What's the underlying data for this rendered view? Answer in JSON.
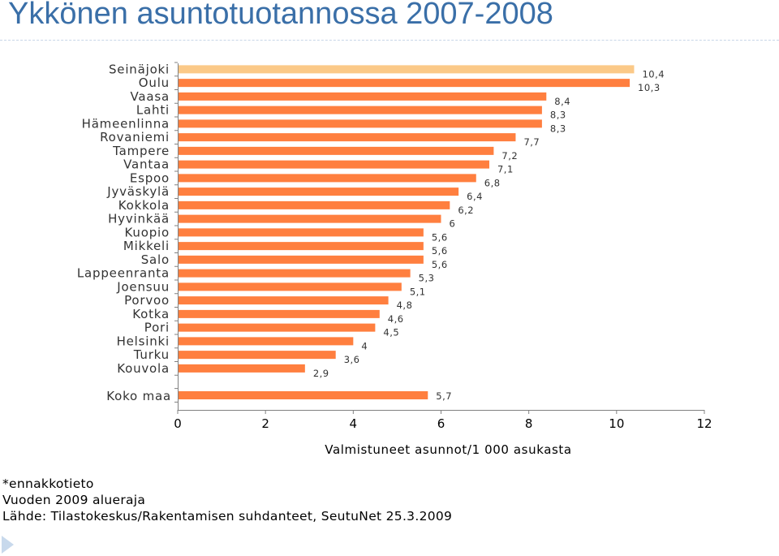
{
  "title": "Ykkönen asuntotuotannossa 2007-2008",
  "footnotes": [
    "*ennakkotieto",
    "Vuoden 2009 alueraja",
    "Lähde: Tilastokeskus/Rakentamisen suhdanteet, SeutuNet 25.3.2009"
  ],
  "icons": {
    "bullet": "triangle-arrow-icon"
  },
  "colors": {
    "bar": "#ff7f3f",
    "highlight_bar": "#fbc988",
    "title": "#3a6fa8",
    "dash": "#c8d6e8"
  },
  "chart_data": {
    "type": "bar",
    "orientation": "horizontal",
    "categories": [
      "Seinäjoki",
      "Oulu",
      "Vaasa",
      "Lahti",
      "Hämeenlinna",
      "Rovaniemi",
      "Tampere",
      "Vantaa",
      "Espoo",
      "Jyväskylä",
      "Kokkola",
      "Hyvinkää",
      "Kuopio",
      "Mikkeli",
      "Salo",
      "Lappeenranta",
      "Joensuu",
      "Porvoo",
      "Kotka",
      "Pori",
      "Helsinki",
      "Turku",
      "Kouvola"
    ],
    "values": [
      10.4,
      10.3,
      8.4,
      8.3,
      8.3,
      7.7,
      7.2,
      7.1,
      6.8,
      6.4,
      6.2,
      6,
      5.6,
      5.6,
      5.6,
      5.3,
      5.1,
      4.8,
      4.6,
      4.5,
      4,
      3.6,
      2.9
    ],
    "value_labels": [
      "10,4",
      "10,3",
      "8,4",
      "8,3",
      "8,3",
      "7,7",
      "7,2",
      "7,1",
      "6,8",
      "6,4",
      "6,2",
      "6",
      "5,6",
      "5,6",
      "5,6",
      "5,3",
      "5,1",
      "4,8",
      "4,6",
      "4,5",
      "4",
      "3,6",
      "2,9"
    ],
    "highlight_index": 0,
    "total": {
      "category": "Koko maa",
      "value": 5.7,
      "value_label": "5,7"
    },
    "xlabel": "Valmistuneet asunnot/1 000 asukasta",
    "ylabel": "",
    "xlim": [
      0,
      12
    ],
    "xticks": [
      0,
      2,
      4,
      6,
      8,
      10,
      12
    ],
    "grid": false,
    "legend": "none"
  }
}
